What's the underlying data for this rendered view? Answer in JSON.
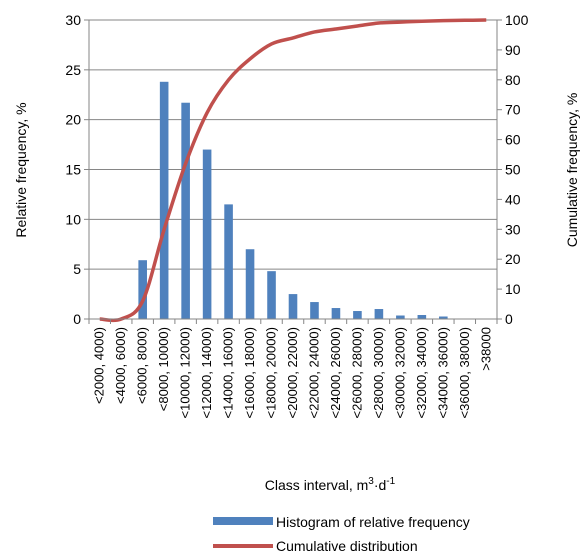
{
  "chart_data": {
    "type": "bar+line",
    "categories": [
      "<2000, 4000)",
      "<4000, 6000)",
      "<6000, 8000)",
      "<8000, 10000)",
      "<10000, 12000)",
      "<12000, 14000)",
      "<14000, 16000)",
      "<16000, 18000)",
      "<18000, 20000)",
      "<20000, 22000)",
      "<22000, 24000)",
      "<24000, 26000)",
      "<26000, 28000)",
      "<28000, 30000)",
      "<30000, 32000)",
      "<32000, 34000)",
      "<34000, 36000)",
      "<36000, 38000)",
      ">38000"
    ],
    "series": [
      {
        "name": "Histogram of relative frequency",
        "type": "bar",
        "axis": "left",
        "color": "#4F81BD",
        "values": [
          0,
          0,
          5.9,
          23.8,
          21.7,
          17.0,
          11.5,
          7.0,
          4.8,
          2.5,
          1.7,
          1.1,
          0.8,
          1.0,
          0.35,
          0.4,
          0.25,
          0.05,
          0.05
        ]
      },
      {
        "name": "Cumulative distribution",
        "type": "line",
        "axis": "right",
        "color": "#C0504D",
        "values": [
          0,
          0,
          6,
          30,
          52,
          69,
          80,
          87,
          92,
          94,
          96,
          97,
          98,
          99,
          99.3,
          99.6,
          99.8,
          99.9,
          100
        ]
      }
    ],
    "xlabel": "Class interval, m",
    "xlabel_sup1": "3",
    "xlabel_mid": "·d",
    "xlabel_sup2": "-1",
    "ylabel_left": "Relative frequency, %",
    "ylabel_right": "Cumulative frequency, %",
    "ylim_left": [
      0,
      30
    ],
    "yticks_left": [
      0,
      5,
      10,
      15,
      20,
      25,
      30
    ],
    "ylim_right": [
      0,
      100
    ],
    "yticks_right": [
      0,
      10,
      20,
      30,
      40,
      50,
      60,
      70,
      80,
      90,
      100
    ],
    "grid": true,
    "legend_position": "bottom"
  }
}
